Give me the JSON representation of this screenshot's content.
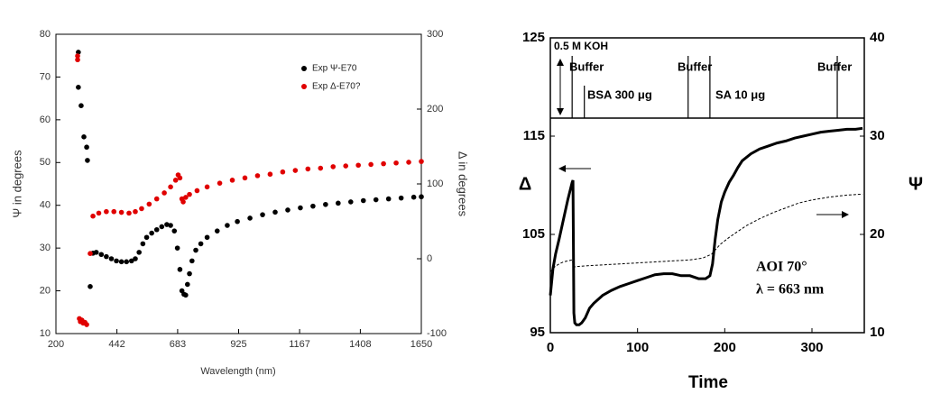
{
  "chart_data": [
    {
      "type": "scatter",
      "x_label": "Wavelength (nm)",
      "y_label": "Ψ in degrees",
      "y2_label": "Δ in degrees",
      "xlim": [
        200,
        1650
      ],
      "xticks": [
        200,
        442,
        683,
        925,
        1167,
        1408,
        1650
      ],
      "ylim": [
        10,
        80
      ],
      "yticks": [
        10,
        20,
        30,
        40,
        50,
        60,
        70,
        80
      ],
      "y2lim": [
        -100,
        300
      ],
      "y2ticks": [
        -100,
        0,
        100,
        200,
        300
      ],
      "legend": "upper right",
      "series": [
        {
          "name": "Exp  Ψ-E70",
          "color": "#000000",
          "x": [
            289,
            289,
            300,
            311,
            322,
            325,
            336,
            347,
            360,
            380,
            400,
            420,
            440,
            460,
            480,
            500,
            515,
            530,
            545,
            560,
            580,
            600,
            620,
            640,
            655,
            670,
            682,
            692,
            700,
            708,
            715,
            722,
            730,
            740,
            755,
            775,
            800,
            840,
            880,
            920,
            970,
            1020,
            1070,
            1120,
            1170,
            1220,
            1270,
            1320,
            1370,
            1420,
            1470,
            1520,
            1570,
            1620,
            1650
          ],
          "values": [
            75.8,
            67.6,
            63.3,
            56,
            53.6,
            50.5,
            21,
            28.8,
            29,
            28.5,
            28,
            27.5,
            27,
            26.8,
            26.8,
            27,
            27.5,
            29,
            31,
            32.5,
            33.5,
            34.3,
            35,
            35.5,
            35.3,
            34,
            30,
            25,
            20,
            19.2,
            19,
            21.5,
            24,
            27,
            29.5,
            31,
            32.5,
            34,
            35.3,
            36.2,
            37,
            37.8,
            38.4,
            38.9,
            39.4,
            39.8,
            40.2,
            40.5,
            40.8,
            41.1,
            41.3,
            41.5,
            41.7,
            41.9,
            42
          ]
        },
        {
          "name": "Exp  Δ-E70?",
          "color": "#e00000",
          "axis": "y2",
          "x": [
            286,
            286,
            293,
            297,
            303,
            308,
            315,
            322,
            336,
            347,
            370,
            400,
            430,
            460,
            490,
            515,
            540,
            570,
            600,
            630,
            655,
            675,
            685,
            692,
            700,
            705,
            715,
            730,
            760,
            800,
            850,
            900,
            950,
            1000,
            1050,
            1100,
            1150,
            1200,
            1250,
            1300,
            1350,
            1400,
            1450,
            1500,
            1550,
            1600,
            1650
          ],
          "values": [
            271,
            266,
            -80,
            -84,
            -82,
            -86,
            -85,
            -88,
            7,
            57,
            61,
            63,
            63,
            62,
            61,
            63,
            67,
            73,
            80,
            88,
            96,
            105,
            112,
            108,
            80,
            76,
            82,
            86,
            91,
            96,
            101,
            105,
            108,
            111,
            113,
            116,
            118,
            120,
            121,
            123,
            124,
            125,
            126,
            127,
            128,
            129,
            130
          ]
        }
      ]
    },
    {
      "type": "line",
      "x_label": "Time",
      "y_label": "Δ",
      "y2_label": "Ψ",
      "xlim": [
        0,
        360
      ],
      "xticks": [
        0,
        100,
        200,
        300
      ],
      "ylim": [
        95,
        125
      ],
      "yticks": [
        95,
        105,
        115,
        125
      ],
      "y2lim": [
        10,
        40
      ],
      "y2ticks": [
        10,
        20,
        30,
        40
      ],
      "annotations": [
        "0.5 M KOH",
        "Buffer",
        "BSA 300 μg",
        "Buffer",
        "SA 10 μg",
        "Buffer",
        "AOI  70°",
        "λ = 663 nm"
      ],
      "events": [
        25,
        39,
        158,
        183,
        329
      ],
      "series": [
        {
          "color": "#000000",
          "style": "solid",
          "x": [
            0,
            3,
            6,
            10,
            15,
            20,
            25,
            26,
            27,
            28,
            30,
            33,
            36,
            40,
            45,
            50,
            60,
            70,
            80,
            90,
            100,
            110,
            120,
            130,
            140,
            150,
            160,
            170,
            178,
            183,
            186,
            189,
            192,
            196,
            200,
            205,
            210,
            215,
            220,
            230,
            240,
            250,
            260,
            270,
            280,
            290,
            300,
            310,
            320,
            330,
            340,
            350,
            358
          ],
          "values": [
            98.8,
            101.5,
            103,
            104.5,
            106.5,
            108.5,
            110.3,
            110.5,
            97,
            96,
            95.8,
            95.8,
            96,
            96.5,
            97.5,
            98,
            98.8,
            99.3,
            99.7,
            100,
            100.3,
            100.6,
            100.9,
            101,
            101,
            100.8,
            100.8,
            100.5,
            100.5,
            100.8,
            102,
            104.5,
            106.5,
            108.3,
            109.3,
            110.3,
            111,
            111.8,
            112.5,
            113.2,
            113.7,
            114,
            114.3,
            114.5,
            114.8,
            115,
            115.2,
            115.4,
            115.5,
            115.6,
            115.7,
            115.7,
            115.8
          ]
        },
        {
          "color": "#000000",
          "style": "dashed",
          "axis": "y2",
          "x": [
            0,
            5,
            10,
            15,
            20,
            25,
            27,
            40,
            60,
            80,
            100,
            120,
            140,
            160,
            175,
            185,
            195,
            205,
            215,
            225,
            240,
            255,
            270,
            285,
            300,
            320,
            340,
            358
          ],
          "values": [
            16.2,
            16.7,
            17,
            17.2,
            17.3,
            17.4,
            16.7,
            16.8,
            16.9,
            17,
            17.1,
            17.2,
            17.3,
            17.4,
            17.6,
            18,
            19,
            19.7,
            20.3,
            20.9,
            21.6,
            22.2,
            22.7,
            23.2,
            23.5,
            23.8,
            24,
            24.1
          ]
        }
      ]
    }
  ]
}
